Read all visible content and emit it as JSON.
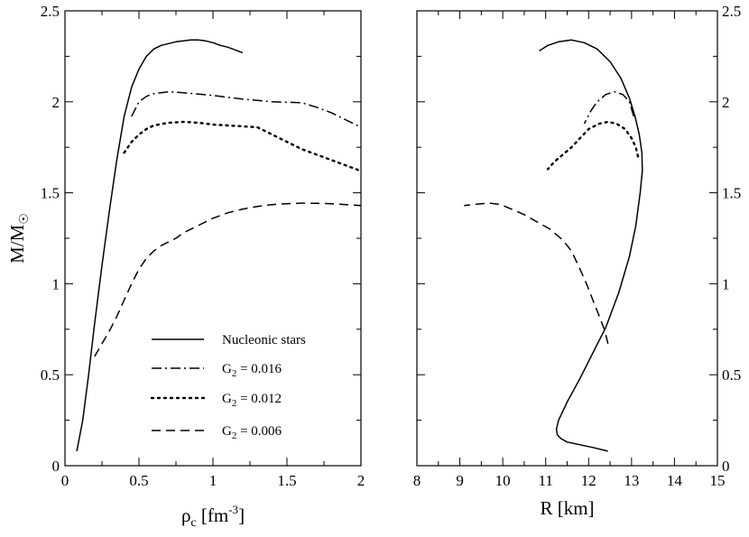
{
  "chart_data": [
    {
      "id": "left",
      "type": "line",
      "xlabel": "ρc [fm-3]",
      "xlabel_parts": {
        "symbol": "ρ",
        "sub": "c",
        "unit_open": " [fm",
        "sup": "-3",
        "unit_close": "]"
      },
      "ylabel": "M/M☉",
      "ylabel_parts": {
        "main": "M/M",
        "sub": "☉"
      },
      "xlim": [
        0,
        2
      ],
      "ylim": [
        0,
        2.5
      ],
      "xticks": [
        0,
        0.5,
        1,
        1.5,
        2
      ],
      "xtick_labels": [
        "0",
        "0.5",
        "1",
        "1.5",
        "2"
      ],
      "yticks": [
        0,
        0.5,
        1,
        1.5,
        2,
        2.5
      ],
      "ytick_labels": [
        "0",
        "0.5",
        "1",
        "1.5",
        "2",
        "2.5"
      ],
      "legend_position": "bottom-center",
      "series": [
        {
          "name": "Nucleonic stars",
          "label_main": "Nucleonic stars",
          "label_sub": "",
          "label_tail": "",
          "style": "solid",
          "x": [
            0.08,
            0.12,
            0.16,
            0.2,
            0.25,
            0.3,
            0.35,
            0.4,
            0.45,
            0.5,
            0.55,
            0.6,
            0.65,
            0.7,
            0.75,
            0.8,
            0.85,
            0.9,
            0.95,
            1.0,
            1.05,
            1.1,
            1.15,
            1.2
          ],
          "y": [
            0.08,
            0.25,
            0.5,
            0.78,
            1.1,
            1.4,
            1.68,
            1.92,
            2.08,
            2.18,
            2.25,
            2.29,
            2.31,
            2.32,
            2.33,
            2.335,
            2.34,
            2.34,
            2.335,
            2.325,
            2.31,
            2.3,
            2.285,
            2.27
          ]
        },
        {
          "name": "G2 = 0.016",
          "label_main": "G",
          "label_sub": "2",
          "label_tail": " = 0.016",
          "style": "dashdot",
          "x": [
            0.45,
            0.5,
            0.55,
            0.6,
            0.7,
            0.8,
            1.0,
            1.2,
            1.4,
            1.6,
            1.7,
            1.8,
            1.9,
            2.0
          ],
          "y": [
            1.92,
            2.0,
            2.03,
            2.045,
            2.055,
            2.05,
            2.035,
            2.015,
            2.0,
            1.995,
            1.97,
            1.94,
            1.9,
            1.86
          ]
        },
        {
          "name": "G2 = 0.012",
          "label_main": "G",
          "label_sub": "2",
          "label_tail": " = 0.012",
          "style": "dotted",
          "x": [
            0.4,
            0.45,
            0.5,
            0.55,
            0.6,
            0.7,
            0.8,
            0.9,
            1.0,
            1.1,
            1.2,
            1.3,
            1.4,
            1.5,
            1.6,
            1.7,
            1.8,
            1.9,
            2.0
          ],
          "y": [
            1.72,
            1.78,
            1.82,
            1.85,
            1.87,
            1.885,
            1.89,
            1.885,
            1.875,
            1.87,
            1.865,
            1.86,
            1.82,
            1.78,
            1.74,
            1.71,
            1.68,
            1.65,
            1.62
          ]
        },
        {
          "name": "G2 = 0.006",
          "label_main": "G",
          "label_sub": "2",
          "label_tail": " = 0.006",
          "style": "dashed",
          "x": [
            0.2,
            0.25,
            0.3,
            0.35,
            0.4,
            0.45,
            0.5,
            0.55,
            0.6,
            0.65,
            0.7,
            0.75,
            0.8,
            0.9,
            1.0,
            1.1,
            1.2,
            1.3,
            1.4,
            1.5,
            1.6,
            1.7,
            1.8,
            1.9,
            2.0
          ],
          "y": [
            0.6,
            0.67,
            0.74,
            0.82,
            0.91,
            1.0,
            1.08,
            1.14,
            1.18,
            1.21,
            1.23,
            1.25,
            1.28,
            1.32,
            1.36,
            1.39,
            1.41,
            1.425,
            1.435,
            1.44,
            1.443,
            1.442,
            1.44,
            1.435,
            1.43
          ]
        }
      ]
    },
    {
      "id": "right",
      "type": "line",
      "xlabel": "R [km]",
      "ylabel": "",
      "xlim": [
        8,
        15
      ],
      "ylim": [
        0,
        2.5
      ],
      "xticks": [
        8,
        9,
        10,
        11,
        12,
        13,
        14,
        15
      ],
      "xtick_labels": [
        "8",
        "9",
        "10",
        "11",
        "12",
        "13",
        "14",
        "15"
      ],
      "yticks": [
        0,
        0.5,
        1,
        1.5,
        2,
        2.5
      ],
      "ytick_labels": [
        "0",
        "0.5",
        "1",
        "1.5",
        "2",
        "2.5"
      ],
      "series": [
        {
          "name": "Nucleonic stars",
          "style": "solid",
          "x": [
            12.45,
            12.1,
            11.8,
            11.5,
            11.35,
            11.27,
            11.25,
            11.3,
            11.5,
            11.8,
            12.1,
            12.4,
            12.7,
            12.95,
            13.1,
            13.2,
            13.25,
            13.24,
            13.18,
            13.08,
            12.95,
            12.75,
            12.5,
            12.2,
            11.9,
            11.6,
            11.3,
            11.05,
            10.85
          ],
          "y": [
            0.08,
            0.1,
            0.115,
            0.13,
            0.15,
            0.17,
            0.2,
            0.25,
            0.35,
            0.48,
            0.62,
            0.76,
            0.95,
            1.15,
            1.32,
            1.5,
            1.62,
            1.72,
            1.82,
            1.92,
            2.02,
            2.13,
            2.22,
            2.29,
            2.325,
            2.34,
            2.33,
            2.31,
            2.28
          ]
        },
        {
          "name": "G2 = 0.016",
          "style": "dashdot",
          "x": [
            13.05,
            12.95,
            12.8,
            12.6,
            12.4,
            12.2,
            12.05,
            11.9
          ],
          "y": [
            1.92,
            2.0,
            2.04,
            2.055,
            2.04,
            2.0,
            1.95,
            1.88
          ]
        },
        {
          "name": "G2 = 0.012",
          "style": "dotted",
          "x": [
            13.15,
            13.1,
            13.0,
            12.85,
            12.65,
            12.45,
            12.25,
            12.0,
            11.8,
            11.6,
            11.4,
            11.2,
            11.05
          ],
          "y": [
            1.7,
            1.75,
            1.8,
            1.85,
            1.88,
            1.89,
            1.88,
            1.85,
            1.8,
            1.75,
            1.71,
            1.67,
            1.63
          ]
        },
        {
          "name": "G2 = 0.006",
          "style": "dashed",
          "x": [
            12.45,
            12.38,
            12.25,
            12.1,
            11.95,
            11.8,
            11.6,
            11.4,
            11.1,
            10.8,
            10.5,
            10.2,
            9.95,
            9.7,
            9.5,
            9.3,
            9.1
          ],
          "y": [
            0.67,
            0.74,
            0.82,
            0.91,
            1.0,
            1.08,
            1.18,
            1.24,
            1.3,
            1.34,
            1.38,
            1.41,
            1.435,
            1.443,
            1.44,
            1.435,
            1.43
          ]
        }
      ]
    }
  ]
}
